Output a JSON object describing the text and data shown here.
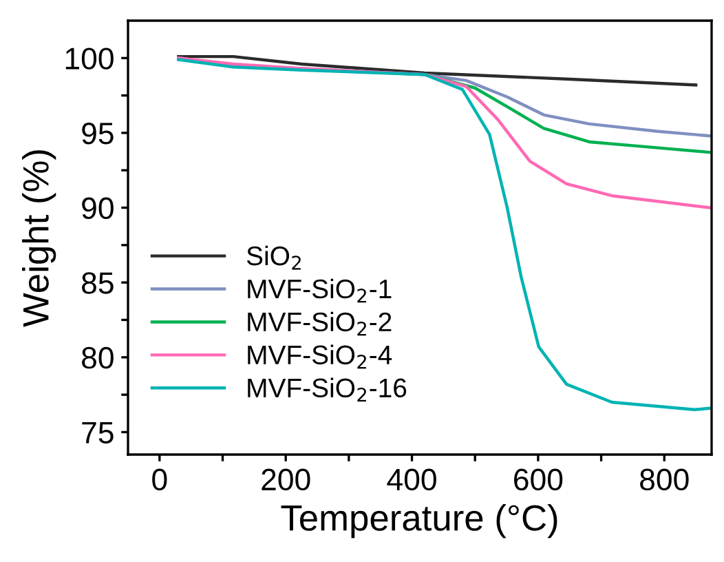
{
  "chart_data": {
    "type": "line",
    "xlabel": "Temperature (°C)",
    "ylabel": "Weight (%)",
    "xlim": [
      -50,
      875
    ],
    "ylim": [
      73.5,
      102.5
    ],
    "xticks": [
      0,
      {
        "value": 100,
        "label": null
      },
      200,
      {
        "value": 300,
        "label": null
      },
      400,
      {
        "value": 500,
        "label": null
      },
      600,
      {
        "value": 700,
        "label": null
      },
      800
    ],
    "yticks": [
      75,
      {
        "value": 77.5,
        "label": null
      },
      80,
      {
        "value": 82.5,
        "label": null
      },
      85,
      {
        "value": 87.5,
        "label": null
      },
      90,
      {
        "value": 92.5,
        "label": null
      },
      95,
      {
        "value": 97.5,
        "label": null
      },
      100
    ],
    "grid": false,
    "legend": "left",
    "marker": "none",
    "line_style": "solid",
    "series": [
      {
        "name": "SiO$_{2}$",
        "color": "#2b2b2b",
        "x": [
          30,
          117,
          225,
          420,
          645,
          850
        ],
        "values": [
          100.1,
          100.1,
          99.6,
          99.0,
          98.6,
          98.2
        ]
      },
      {
        "name": "MVF-SiO$_{2}$-1",
        "color": "#7f8fc0",
        "x": [
          30,
          117,
          225,
          420,
          486,
          551,
          609,
          681,
          790,
          872
        ],
        "values": [
          100.0,
          99.5,
          99.3,
          98.9,
          98.5,
          97.4,
          96.2,
          95.6,
          95.1,
          94.8
        ]
      },
      {
        "name": "MVF-SiO$_{2}$-2",
        "color": "#00b050",
        "x": [
          420,
          500,
          557,
          609,
          681,
          790,
          872
        ],
        "values": [
          98.9,
          98.0,
          96.6,
          95.3,
          94.4,
          94.0,
          93.7
        ]
      },
      {
        "name": "MVF-SiO$_{2}$-4",
        "color": "#ff69b4",
        "x": [
          30,
          117,
          225,
          420,
          486,
          536,
          587,
          645,
          717,
          872
        ],
        "values": [
          100.0,
          99.6,
          99.3,
          98.9,
          98.1,
          95.9,
          93.1,
          91.6,
          90.8,
          90.0
        ]
      },
      {
        "name": "MVF-SiO$_{2}$-16",
        "color": "#00b3b3",
        "x": [
          30,
          117,
          225,
          420,
          480,
          523,
          551,
          573,
          601,
          645,
          717,
          848,
          872
        ],
        "values": [
          99.9,
          99.4,
          99.2,
          98.9,
          97.9,
          94.9,
          90.0,
          85.4,
          80.7,
          78.2,
          77.0,
          76.5,
          76.6
        ]
      }
    ]
  }
}
